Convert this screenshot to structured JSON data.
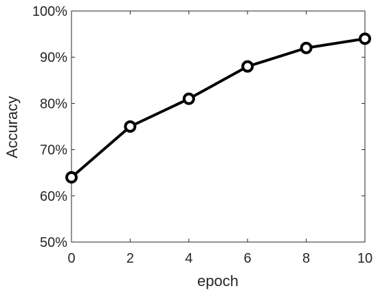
{
  "chart_data": {
    "type": "line",
    "title": "",
    "xlabel": "epoch",
    "ylabel": "Accuracy",
    "xlim": [
      0,
      10
    ],
    "ylim": [
      50,
      100
    ],
    "x_ticks": [
      "0",
      "2",
      "4",
      "6",
      "8",
      "10"
    ],
    "y_ticks": [
      "50%",
      "60%",
      "70%",
      "80%",
      "90%",
      "100%"
    ],
    "grid": false,
    "legend": "none",
    "series": [
      {
        "x": [
          0,
          2,
          4,
          6,
          8,
          10
        ],
        "values": [
          64,
          75,
          81,
          88,
          92,
          94
        ],
        "color": "#000000",
        "marker": "circle-open"
      }
    ]
  }
}
